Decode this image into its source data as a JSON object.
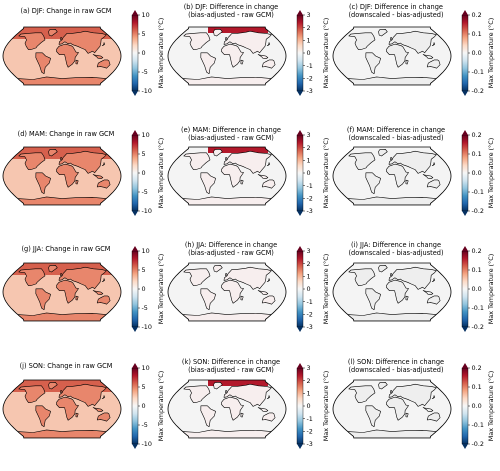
{
  "chart_data": {
    "type": "heatmap",
    "colormap": "RdBu_r",
    "colorbar_label": "Max Temperature (°C)",
    "columns": [
      {
        "key": "raw",
        "range": [
          -10,
          10
        ],
        "ticks": [
          -10,
          -5,
          0,
          5,
          10
        ]
      },
      {
        "key": "bias",
        "range": [
          -3,
          3
        ],
        "ticks": [
          -3,
          -2,
          -1,
          0,
          1,
          2,
          3
        ]
      },
      {
        "key": "down",
        "range": [
          -0.2,
          0.2
        ],
        "ticks": [
          -0.2,
          -0.1,
          0.0,
          0.1,
          0.2
        ]
      }
    ],
    "panels": [
      {
        "label": "(a) DJF: Change in raw GCM",
        "subtitle": "",
        "season": "DJF",
        "col": 0
      },
      {
        "label": "(b) DJF: Difference in change",
        "subtitle": "(bias-adjusted - raw GCM)",
        "season": "DJF",
        "col": 1
      },
      {
        "label": "(c) DJF: Difference in change",
        "subtitle": "(downscaled - bias-adjusted)",
        "season": "DJF",
        "col": 2
      },
      {
        "label": "(d) MAM: Change in raw GCM",
        "subtitle": "",
        "season": "MAM",
        "col": 0
      },
      {
        "label": "(e) MAM: Difference in change",
        "subtitle": "(bias-adjusted - raw GCM)",
        "season": "MAM",
        "col": 1
      },
      {
        "label": "(f) MAM: Difference in change",
        "subtitle": "(downscaled - bias-adjusted)",
        "season": "MAM",
        "col": 2
      },
      {
        "label": "(g) JJA: Change in raw GCM",
        "subtitle": "",
        "season": "JJA",
        "col": 0
      },
      {
        "label": "(h) JJA: Difference in change",
        "subtitle": "(bias-adjusted - raw GCM)",
        "season": "JJA",
        "col": 1
      },
      {
        "label": "(i) JJA: Difference in change",
        "subtitle": "(downscaled - bias-adjusted)",
        "season": "JJA",
        "col": 2
      },
      {
        "label": "(j) SON: Change in raw GCM",
        "subtitle": "",
        "season": "SON",
        "col": 0
      },
      {
        "label": "(k) SON: Difference in change",
        "subtitle": "(bias-adjusted - raw GCM)",
        "season": "SON",
        "col": 1
      },
      {
        "label": "(l) SON: Difference in change",
        "subtitle": "(downscaled - bias-adjusted)",
        "season": "SON",
        "col": 2
      }
    ]
  },
  "colors": {
    "cmap_stops": [
      "#053061",
      "#2166ac",
      "#4393c3",
      "#92c5de",
      "#d1e5f0",
      "#f7f7f7",
      "#fddbc7",
      "#f4a582",
      "#d6604d",
      "#b2182b",
      "#67001f"
    ],
    "coast": "#000000",
    "map_border": "#000000"
  }
}
